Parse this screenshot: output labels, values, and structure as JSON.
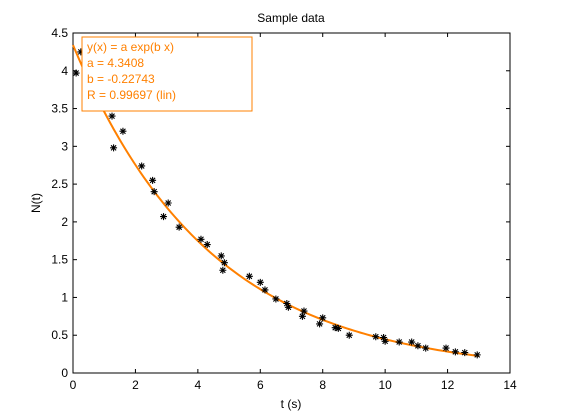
{
  "chart_data": {
    "type": "scatter",
    "title": "Sample data",
    "xlabel": "t (s)",
    "ylabel": "N(t)",
    "xlim": [
      0,
      14
    ],
    "ylim": [
      0,
      4.5
    ],
    "xticks": [
      0,
      2,
      4,
      6,
      8,
      10,
      12,
      14
    ],
    "yticks": [
      0,
      0.5,
      1,
      1.5,
      2,
      2.5,
      3,
      3.5,
      4,
      4.5
    ],
    "xtick_labels": [
      "0",
      "2",
      "4",
      "6",
      "8",
      "10",
      "12",
      "14"
    ],
    "ytick_labels": [
      "0",
      "0.5",
      "1",
      "1.5",
      "2",
      "2.5",
      "3",
      "3.5",
      "4",
      "4.5"
    ],
    "grid": false,
    "series": [
      {
        "kind": "markers",
        "marker": "asterisk",
        "color": "#000000",
        "x": [
          0.1,
          0.25,
          1.25,
          1.3,
          1.6,
          2.2,
          2.55,
          2.6,
          2.9,
          3.05,
          3.4,
          4.1,
          4.3,
          4.75,
          4.8,
          4.85,
          5.65,
          6.0,
          6.15,
          6.5,
          6.85,
          6.9,
          7.35,
          7.4,
          7.9,
          8.0,
          8.4,
          8.5,
          8.85,
          9.7,
          9.95,
          10.0,
          10.45,
          10.85,
          11.05,
          11.3,
          11.95,
          12.25,
          12.55,
          12.95
        ],
        "y": [
          3.97,
          4.25,
          3.4,
          2.98,
          3.2,
          2.74,
          2.55,
          2.4,
          2.07,
          2.25,
          1.93,
          1.77,
          1.7,
          1.55,
          1.36,
          1.46,
          1.28,
          1.2,
          1.1,
          0.98,
          0.92,
          0.87,
          0.75,
          0.82,
          0.65,
          0.73,
          0.6,
          0.59,
          0.5,
          0.48,
          0.47,
          0.42,
          0.41,
          0.41,
          0.36,
          0.33,
          0.33,
          0.28,
          0.27,
          0.24
        ]
      },
      {
        "kind": "fit",
        "color": "#ff8000",
        "a": 4.3408,
        "b": -0.22743,
        "x_range": [
          0,
          13
        ]
      }
    ],
    "annotation": {
      "lines": [
        "y(x) = a exp(b x)",
        "a = 4.3408",
        "b = -0.22743",
        "R = 0.99697  (lin)"
      ],
      "color": "#ff8000",
      "position": "top-left"
    }
  }
}
